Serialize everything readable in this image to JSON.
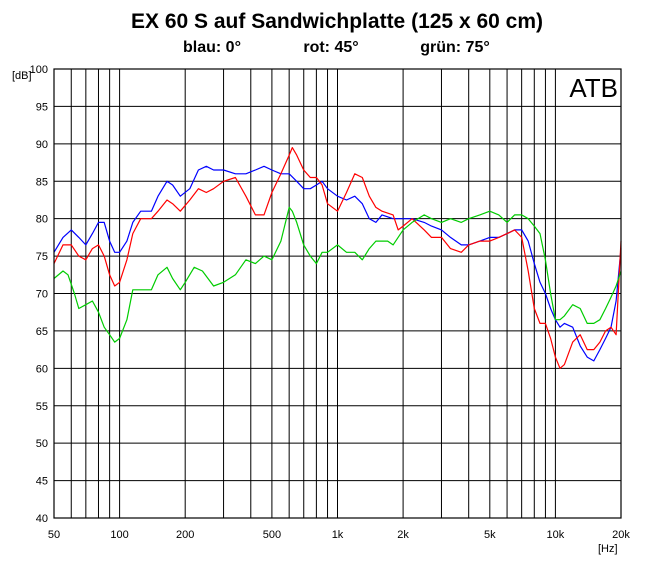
{
  "chart_data": {
    "type": "line",
    "title": "EX 60 S auf Sandwichplatte (125 x 60 cm)",
    "subtitle_parts": [
      "blau: 0°",
      "rot: 45°",
      "grün: 75°"
    ],
    "badge": "ATB",
    "xlabel": "[Hz]",
    "ylabel": "[dB]",
    "x_scale": "log",
    "xlim": [
      50,
      20000
    ],
    "ylim": [
      40,
      100
    ],
    "y_ticks": [
      100,
      95,
      90,
      85,
      80,
      75,
      70,
      65,
      60,
      55,
      50,
      45,
      40
    ],
    "x_ticks": [
      {
        "value": 50,
        "label": "50"
      },
      {
        "value": 100,
        "label": "100"
      },
      {
        "value": 200,
        "label": "200"
      },
      {
        "value": 500,
        "label": "500"
      },
      {
        "value": 1000,
        "label": "1k"
      },
      {
        "value": 2000,
        "label": "2k"
      },
      {
        "value": 5000,
        "label": "5k"
      },
      {
        "value": 10000,
        "label": "10k"
      },
      {
        "value": 20000,
        "label": "20k"
      }
    ],
    "grid": true,
    "series": [
      {
        "name": "blau: 0°",
        "color": "#0000ff",
        "points": [
          [
            50,
            75.5
          ],
          [
            55,
            77.5
          ],
          [
            60,
            78.5
          ],
          [
            65,
            77.5
          ],
          [
            70,
            76.5
          ],
          [
            75,
            78
          ],
          [
            80,
            79.5
          ],
          [
            85,
            79.5
          ],
          [
            90,
            77
          ],
          [
            95,
            75.5
          ],
          [
            100,
            75.5
          ],
          [
            108,
            77
          ],
          [
            115,
            79.5
          ],
          [
            125,
            81
          ],
          [
            140,
            81
          ],
          [
            150,
            83
          ],
          [
            165,
            85
          ],
          [
            175,
            84.5
          ],
          [
            190,
            83
          ],
          [
            210,
            84
          ],
          [
            230,
            86.5
          ],
          [
            250,
            87
          ],
          [
            270,
            86.5
          ],
          [
            300,
            86.5
          ],
          [
            340,
            86
          ],
          [
            380,
            86
          ],
          [
            420,
            86.5
          ],
          [
            460,
            87
          ],
          [
            500,
            86.5
          ],
          [
            550,
            86
          ],
          [
            600,
            86
          ],
          [
            650,
            85
          ],
          [
            700,
            84
          ],
          [
            750,
            84
          ],
          [
            800,
            84.5
          ],
          [
            850,
            85
          ],
          [
            900,
            84
          ],
          [
            1000,
            83
          ],
          [
            1100,
            82.5
          ],
          [
            1200,
            83
          ],
          [
            1300,
            82
          ],
          [
            1400,
            80
          ],
          [
            1500,
            79.5
          ],
          [
            1600,
            80.5
          ],
          [
            1800,
            80
          ],
          [
            2000,
            80
          ],
          [
            2200,
            80
          ],
          [
            2500,
            79.5
          ],
          [
            2700,
            79
          ],
          [
            3000,
            78.5
          ],
          [
            3300,
            77.5
          ],
          [
            3700,
            76.5
          ],
          [
            4000,
            76.5
          ],
          [
            4500,
            77
          ],
          [
            5000,
            77.5
          ],
          [
            5500,
            77.5
          ],
          [
            6000,
            78
          ],
          [
            6500,
            78.5
          ],
          [
            7000,
            78.5
          ],
          [
            7500,
            77
          ],
          [
            8000,
            74
          ],
          [
            8500,
            71.5
          ],
          [
            9000,
            70
          ],
          [
            9500,
            68
          ],
          [
            10000,
            66.5
          ],
          [
            10500,
            65.5
          ],
          [
            11000,
            66
          ],
          [
            12000,
            65.5
          ],
          [
            13000,
            63
          ],
          [
            14000,
            61.5
          ],
          [
            15000,
            61
          ],
          [
            16000,
            62.5
          ],
          [
            17000,
            64
          ],
          [
            18000,
            65.5
          ],
          [
            19000,
            69
          ],
          [
            20000,
            76
          ]
        ]
      },
      {
        "name": "rot: 45°",
        "color": "#ff0000",
        "points": [
          [
            50,
            74
          ],
          [
            55,
            76.5
          ],
          [
            60,
            76.5
          ],
          [
            65,
            75
          ],
          [
            70,
            74.5
          ],
          [
            75,
            76
          ],
          [
            80,
            76.5
          ],
          [
            85,
            75
          ],
          [
            90,
            72.5
          ],
          [
            95,
            71
          ],
          [
            100,
            71.5
          ],
          [
            108,
            74.5
          ],
          [
            115,
            78
          ],
          [
            125,
            80
          ],
          [
            140,
            80
          ],
          [
            150,
            81
          ],
          [
            165,
            82.5
          ],
          [
            175,
            82
          ],
          [
            190,
            81
          ],
          [
            210,
            82.5
          ],
          [
            230,
            84
          ],
          [
            250,
            83.5
          ],
          [
            270,
            84
          ],
          [
            300,
            85
          ],
          [
            340,
            85.5
          ],
          [
            380,
            83
          ],
          [
            420,
            80.5
          ],
          [
            460,
            80.5
          ],
          [
            500,
            83.5
          ],
          [
            550,
            86
          ],
          [
            600,
            88.5
          ],
          [
            620,
            89.5
          ],
          [
            650,
            88.5
          ],
          [
            700,
            86.5
          ],
          [
            750,
            85.5
          ],
          [
            800,
            85.5
          ],
          [
            850,
            84.5
          ],
          [
            900,
            82
          ],
          [
            1000,
            81
          ],
          [
            1100,
            83.5
          ],
          [
            1200,
            86
          ],
          [
            1300,
            85.5
          ],
          [
            1400,
            83
          ],
          [
            1500,
            81.5
          ],
          [
            1600,
            81
          ],
          [
            1800,
            80.5
          ],
          [
            1900,
            78.5
          ],
          [
            2000,
            79
          ],
          [
            2200,
            80
          ],
          [
            2500,
            78.5
          ],
          [
            2700,
            77.5
          ],
          [
            3000,
            77.5
          ],
          [
            3300,
            76
          ],
          [
            3700,
            75.5
          ],
          [
            4000,
            76.5
          ],
          [
            4500,
            77
          ],
          [
            5000,
            77
          ],
          [
            5500,
            77.5
          ],
          [
            6000,
            78
          ],
          [
            6500,
            78.5
          ],
          [
            7000,
            77.5
          ],
          [
            7500,
            73
          ],
          [
            8000,
            68
          ],
          [
            8500,
            66
          ],
          [
            9000,
            66
          ],
          [
            9500,
            64
          ],
          [
            10000,
            61.5
          ],
          [
            10500,
            60
          ],
          [
            11000,
            60.5
          ],
          [
            12000,
            63.5
          ],
          [
            13000,
            64.5
          ],
          [
            14000,
            62.5
          ],
          [
            15000,
            62.5
          ],
          [
            16000,
            63.5
          ],
          [
            17000,
            65
          ],
          [
            18000,
            65.5
          ],
          [
            19000,
            64.5
          ],
          [
            20000,
            77
          ]
        ]
      },
      {
        "name": "grün: 75°",
        "color": "#00cc00",
        "points": [
          [
            50,
            72
          ],
          [
            55,
            73
          ],
          [
            58,
            72.5
          ],
          [
            62,
            70
          ],
          [
            65,
            68
          ],
          [
            70,
            68.5
          ],
          [
            75,
            69
          ],
          [
            80,
            67.5
          ],
          [
            85,
            65.5
          ],
          [
            90,
            64.5
          ],
          [
            95,
            63.5
          ],
          [
            100,
            64
          ],
          [
            108,
            66.5
          ],
          [
            115,
            70.5
          ],
          [
            125,
            70.5
          ],
          [
            140,
            70.5
          ],
          [
            150,
            72.5
          ],
          [
            165,
            73.5
          ],
          [
            175,
            72
          ],
          [
            190,
            70.5
          ],
          [
            200,
            71.5
          ],
          [
            220,
            73.5
          ],
          [
            240,
            73
          ],
          [
            270,
            71
          ],
          [
            300,
            71.5
          ],
          [
            340,
            72.5
          ],
          [
            380,
            74.5
          ],
          [
            420,
            74
          ],
          [
            460,
            75
          ],
          [
            500,
            74.5
          ],
          [
            550,
            77
          ],
          [
            600,
            81.5
          ],
          [
            620,
            81
          ],
          [
            650,
            79.5
          ],
          [
            700,
            76.5
          ],
          [
            750,
            75
          ],
          [
            800,
            74
          ],
          [
            850,
            75.5
          ],
          [
            900,
            75.5
          ],
          [
            1000,
            76.5
          ],
          [
            1100,
            75.5
          ],
          [
            1200,
            75.5
          ],
          [
            1300,
            74.5
          ],
          [
            1400,
            76
          ],
          [
            1500,
            77
          ],
          [
            1700,
            77
          ],
          [
            1800,
            76.5
          ],
          [
            2000,
            78.5
          ],
          [
            2200,
            79.5
          ],
          [
            2500,
            80.5
          ],
          [
            2700,
            80
          ],
          [
            3000,
            79.5
          ],
          [
            3300,
            80
          ],
          [
            3700,
            79.5
          ],
          [
            4000,
            80
          ],
          [
            4500,
            80.5
          ],
          [
            5000,
            81
          ],
          [
            5500,
            80.5
          ],
          [
            6000,
            79.5
          ],
          [
            6500,
            80.5
          ],
          [
            7000,
            80.5
          ],
          [
            7500,
            80
          ],
          [
            8000,
            79
          ],
          [
            8500,
            78
          ],
          [
            9000,
            74.5
          ],
          [
            9500,
            70
          ],
          [
            10000,
            66.5
          ],
          [
            10500,
            66.5
          ],
          [
            11000,
            67
          ],
          [
            12000,
            68.5
          ],
          [
            13000,
            68
          ],
          [
            14000,
            66
          ],
          [
            15000,
            66
          ],
          [
            16000,
            66.5
          ],
          [
            17000,
            68
          ],
          [
            18000,
            69.5
          ],
          [
            19000,
            71
          ],
          [
            20000,
            73
          ]
        ]
      }
    ]
  }
}
